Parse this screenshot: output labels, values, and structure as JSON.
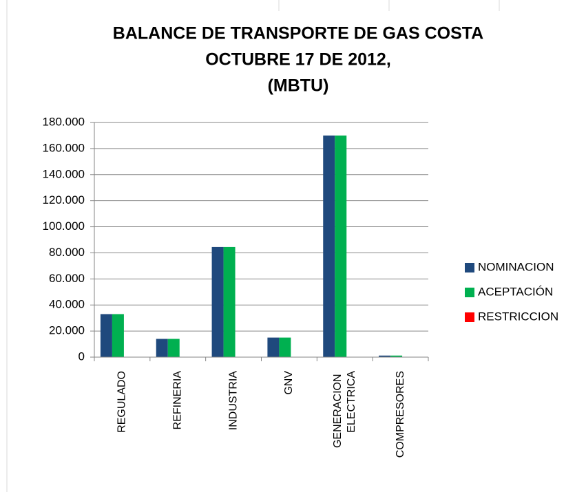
{
  "chart_data": {
    "type": "bar",
    "title": [
      "BALANCE DE TRANSPORTE DE GAS COSTA",
      "OCTUBRE 17 DE 2012,",
      "(MBTU)"
    ],
    "categories": [
      "REGULADO",
      "REFINERIA",
      "INDUSTRIA",
      "GNV",
      "GENERACION ELECTRICA",
      "COMPRESORES"
    ],
    "series": [
      {
        "name": "NOMINACION",
        "color": "#1f497d",
        "values": [
          33000,
          14000,
          84500,
          15000,
          170000,
          1200
        ]
      },
      {
        "name": "ACEPTACIÓN",
        "color": "#00b050",
        "values": [
          33000,
          14000,
          84500,
          15000,
          170000,
          1200
        ]
      },
      {
        "name": "RESTRICCION",
        "color": "#ff0000",
        "values": [
          0,
          0,
          0,
          0,
          0,
          0
        ]
      }
    ],
    "ylim": [
      0,
      180000
    ],
    "yticks": [
      0,
      {
        "value": 20000,
        "label": "20.000"
      },
      {
        "value": 40000,
        "label": "40.000"
      },
      {
        "value": 60000,
        "label": "60.000"
      },
      {
        "value": 80000,
        "label": "80.000"
      },
      {
        "value": 100000,
        "label": "100.000"
      },
      {
        "value": 120000,
        "label": "120.000"
      },
      {
        "value": 140000,
        "label": "140.000"
      },
      {
        "value": 160000,
        "label": "160.000"
      },
      {
        "value": 180000,
        "label": "180.000"
      }
    ],
    "grid": true,
    "legend": "right"
  }
}
